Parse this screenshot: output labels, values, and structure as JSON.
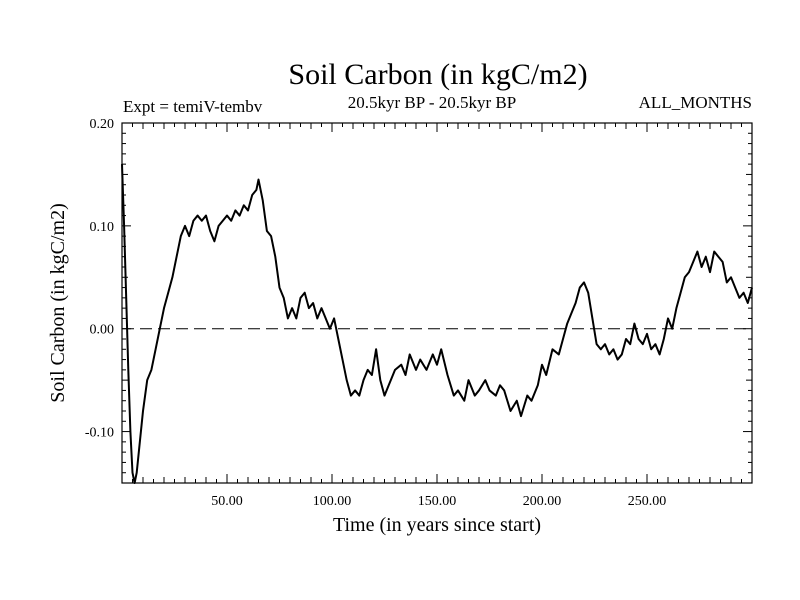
{
  "chart_data": {
    "type": "line",
    "title": "Soil Carbon (in kgC/m2)",
    "experiment_label": "Expt = temiV-tembv",
    "period_label": "20.5kyr BP - 20.5kyr BP",
    "months_label": "ALL_MONTHS",
    "xlabel": "Time (in years since start)",
    "ylabel": "Soil Carbon (in kgC/m2)",
    "xlim": [
      0,
      300
    ],
    "ylim": [
      -0.15,
      0.2
    ],
    "x_ticks": [
      50,
      100,
      150,
      200,
      250
    ],
    "x_tick_labels": [
      "50.00",
      "100.00",
      "150.00",
      "200.00",
      "250.00"
    ],
    "y_ticks": [
      -0.1,
      0.0,
      0.1,
      0.2
    ],
    "y_tick_labels": [
      "-0.10",
      "0.00",
      "0.10",
      "0.20"
    ],
    "reference_line": {
      "y": 0.0,
      "style": "dashed"
    },
    "series": [
      {
        "name": "Soil Carbon",
        "color": "#000000",
        "x": [
          0,
          1,
          2,
          3,
          4,
          5,
          6,
          7,
          8,
          10,
          12,
          14,
          16,
          18,
          20,
          22,
          24,
          26,
          28,
          30,
          32,
          34,
          36,
          38,
          40,
          42,
          44,
          46,
          48,
          50,
          52,
          54,
          56,
          58,
          60,
          62,
          64,
          65,
          67,
          69,
          71,
          73,
          75,
          77,
          79,
          81,
          83,
          85,
          87,
          89,
          91,
          93,
          95,
          97,
          99,
          101,
          103,
          105,
          107,
          109,
          111,
          113,
          115,
          117,
          119,
          121,
          123,
          125,
          127,
          130,
          133,
          135,
          137,
          140,
          142,
          145,
          148,
          150,
          152,
          155,
          158,
          160,
          163,
          165,
          168,
          170,
          173,
          175,
          178,
          180,
          182,
          185,
          188,
          190,
          193,
          195,
          198,
          200,
          202,
          205,
          208,
          210,
          212,
          214,
          216,
          218,
          220,
          222,
          224,
          226,
          228,
          230,
          232,
          234,
          236,
          238,
          240,
          242,
          244,
          246,
          248,
          250,
          252,
          254,
          256,
          258,
          260,
          262,
          264,
          266,
          268,
          270,
          272,
          274,
          276,
          278,
          280,
          282,
          284,
          286,
          288,
          290,
          292,
          294,
          296,
          298,
          300
        ],
        "y": [
          0.16,
          0.1,
          0.03,
          -0.04,
          -0.1,
          -0.14,
          -0.15,
          -0.14,
          -0.12,
          -0.08,
          -0.05,
          -0.04,
          -0.02,
          0.0,
          0.02,
          0.035,
          0.05,
          0.07,
          0.09,
          0.1,
          0.09,
          0.105,
          0.11,
          0.105,
          0.11,
          0.095,
          0.085,
          0.1,
          0.105,
          0.11,
          0.105,
          0.115,
          0.11,
          0.12,
          0.115,
          0.13,
          0.135,
          0.145,
          0.125,
          0.095,
          0.09,
          0.07,
          0.04,
          0.03,
          0.01,
          0.02,
          0.01,
          0.03,
          0.035,
          0.02,
          0.025,
          0.01,
          0.02,
          0.01,
          0.0,
          0.01,
          -0.01,
          -0.03,
          -0.05,
          -0.065,
          -0.06,
          -0.065,
          -0.05,
          -0.04,
          -0.045,
          -0.02,
          -0.05,
          -0.065,
          -0.055,
          -0.04,
          -0.035,
          -0.045,
          -0.025,
          -0.04,
          -0.03,
          -0.04,
          -0.025,
          -0.035,
          -0.02,
          -0.045,
          -0.065,
          -0.06,
          -0.07,
          -0.05,
          -0.065,
          -0.06,
          -0.05,
          -0.06,
          -0.065,
          -0.055,
          -0.06,
          -0.08,
          -0.07,
          -0.085,
          -0.065,
          -0.07,
          -0.055,
          -0.035,
          -0.045,
          -0.02,
          -0.025,
          -0.01,
          0.005,
          0.015,
          0.025,
          0.04,
          0.045,
          0.035,
          0.01,
          -0.015,
          -0.02,
          -0.015,
          -0.025,
          -0.02,
          -0.03,
          -0.025,
          -0.01,
          -0.015,
          0.005,
          -0.01,
          -0.015,
          -0.005,
          -0.02,
          -0.015,
          -0.025,
          -0.01,
          0.01,
          0.0,
          0.02,
          0.035,
          0.05,
          0.055,
          0.065,
          0.075,
          0.06,
          0.07,
          0.055,
          0.075,
          0.07,
          0.065,
          0.045,
          0.05,
          0.04,
          0.03,
          0.035,
          0.025,
          0.04
        ]
      }
    ]
  }
}
